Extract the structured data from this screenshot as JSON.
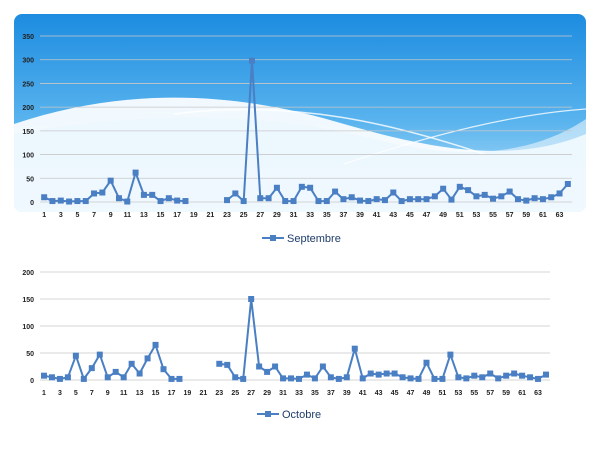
{
  "colors": {
    "series": "#4a7fc4",
    "grid": "#c8c8c8",
    "sky_top": "#1f8fe0",
    "sky_bottom": "#bfe6fa"
  },
  "chart_data": [
    {
      "type": "line",
      "legend": "Septembre",
      "legend_position": "bottom",
      "grid": true,
      "ylim": [
        0,
        350
      ],
      "yticks": [
        0,
        50,
        100,
        150,
        200,
        250,
        300,
        350
      ],
      "x_tick_labels": [
        "1",
        "3",
        "5",
        "7",
        "9",
        "11",
        "13",
        "15",
        "17",
        "19",
        "21",
        "23",
        "25",
        "27",
        "29",
        "31",
        "33",
        "35",
        "37",
        "39",
        "41",
        "43",
        "45",
        "47",
        "49",
        "51",
        "53",
        "55",
        "57",
        "59",
        "61",
        "63"
      ],
      "x": [
        1,
        2,
        3,
        4,
        5,
        6,
        7,
        8,
        9,
        10,
        11,
        12,
        13,
        14,
        15,
        16,
        17,
        18,
        19,
        20,
        21,
        22,
        23,
        24,
        25,
        26,
        27,
        28,
        29,
        30,
        31,
        32,
        33,
        34,
        35,
        36,
        37,
        38,
        39,
        40,
        41,
        42,
        43,
        44,
        45,
        46,
        47,
        48,
        49,
        50,
        51,
        52,
        53,
        54,
        55,
        56,
        57,
        58,
        59,
        60,
        61,
        62,
        63,
        64
      ],
      "values": [
        10,
        2,
        3,
        1,
        2,
        2,
        18,
        20,
        45,
        8,
        1,
        62,
        15,
        15,
        2,
        8,
        3,
        2,
        null,
        null,
        null,
        null,
        4,
        18,
        2,
        298,
        8,
        8,
        30,
        2,
        2,
        32,
        30,
        2,
        2,
        22,
        6,
        10,
        3,
        2,
        6,
        4,
        20,
        2,
        6,
        6,
        6,
        12,
        28,
        5,
        32,
        25,
        12,
        15,
        7,
        12,
        22,
        6,
        3,
        8,
        6,
        10,
        18,
        38
      ]
    },
    {
      "type": "line",
      "legend": "Octobre",
      "legend_position": "bottom",
      "grid": true,
      "ylim": [
        0,
        200
      ],
      "yticks": [
        0,
        50,
        100,
        150,
        200
      ],
      "x_tick_labels": [
        "1",
        "3",
        "5",
        "7",
        "9",
        "11",
        "13",
        "15",
        "17",
        "19",
        "21",
        "23",
        "25",
        "27",
        "29",
        "31",
        "33",
        "35",
        "37",
        "39",
        "41",
        "43",
        "45",
        "47",
        "49",
        "51",
        "53",
        "55",
        "57",
        "59",
        "61",
        "63"
      ],
      "x": [
        1,
        2,
        3,
        4,
        5,
        6,
        7,
        8,
        9,
        10,
        11,
        12,
        13,
        14,
        15,
        16,
        17,
        18,
        19,
        20,
        21,
        22,
        23,
        24,
        25,
        26,
        27,
        28,
        29,
        30,
        31,
        32,
        33,
        34,
        35,
        36,
        37,
        38,
        39,
        40,
        41,
        42,
        43,
        44,
        45,
        46,
        47,
        48,
        49,
        50,
        51,
        52,
        53,
        54,
        55,
        56,
        57,
        58,
        59,
        60,
        61,
        62,
        63,
        64
      ],
      "values": [
        8,
        5,
        2,
        5,
        45,
        2,
        22,
        47,
        5,
        15,
        5,
        30,
        12,
        40,
        65,
        20,
        2,
        2,
        null,
        null,
        null,
        null,
        30,
        28,
        5,
        2,
        150,
        25,
        15,
        25,
        3,
        3,
        2,
        10,
        3,
        25,
        5,
        2,
        5,
        58,
        3,
        12,
        10,
        12,
        12,
        5,
        3,
        2,
        32,
        2,
        2,
        47,
        5,
        3,
        8,
        5,
        12,
        3,
        8,
        12,
        8,
        5,
        2,
        10
      ]
    }
  ]
}
